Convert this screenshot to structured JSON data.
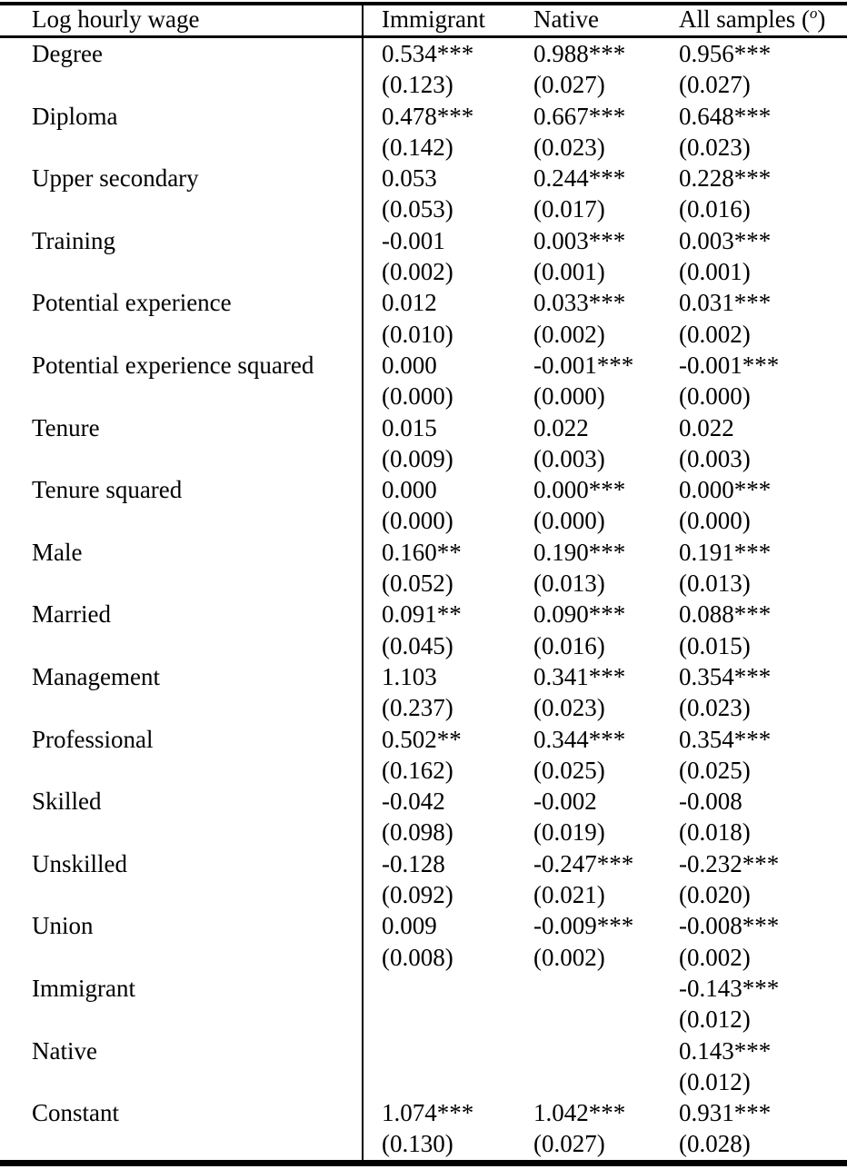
{
  "page": {
    "background_color": "#ffffff",
    "text_color": "#000000",
    "rule_color": "#000000"
  },
  "table": {
    "header": {
      "row_label": "Log hourly wage",
      "col_immigrant": "Immigrant",
      "col_native": "Native",
      "col_all_samples": {
        "base": "All samples ",
        "open_paren": "(",
        "sup": "o",
        "close_paren": ")"
      }
    },
    "rows": [
      {
        "label": "Degree",
        "coef": [
          "0.534***",
          "0.988***",
          "0.956***"
        ],
        "se": [
          "(0.123)",
          "(0.027)",
          "(0.027)"
        ]
      },
      {
        "label": "Diploma",
        "coef": [
          "0.478***",
          "0.667***",
          "0.648***"
        ],
        "se": [
          "(0.142)",
          "(0.023)",
          "(0.023)"
        ]
      },
      {
        "label": "Upper secondary",
        "coef": [
          "0.053",
          "0.244***",
          "0.228***"
        ],
        "se": [
          "(0.053)",
          "(0.017)",
          "(0.016)"
        ]
      },
      {
        "label": "Training",
        "coef": [
          "-0.001",
          "0.003***",
          "0.003***"
        ],
        "se": [
          "(0.002)",
          "(0.001)",
          "(0.001)"
        ]
      },
      {
        "label": "Potential experience",
        "coef": [
          "0.012",
          "0.033***",
          "0.031***"
        ],
        "se": [
          "(0.010)",
          "(0.002)",
          "(0.002)"
        ]
      },
      {
        "label": "Potential experience squared",
        "coef": [
          "0.000",
          "-0.001***",
          "-0.001***"
        ],
        "se": [
          "(0.000)",
          "(0.000)",
          "(0.000)"
        ]
      },
      {
        "label": "Tenure",
        "coef": [
          "0.015",
          "0.022",
          "0.022"
        ],
        "se": [
          "(0.009)",
          "(0.003)",
          "(0.003)"
        ]
      },
      {
        "label": "Tenure squared",
        "coef": [
          "0.000",
          "0.000***",
          "0.000***"
        ],
        "se": [
          "(0.000)",
          "(0.000)",
          "(0.000)"
        ]
      },
      {
        "label": "Male",
        "coef": [
          "0.160**",
          "0.190***",
          "0.191***"
        ],
        "se": [
          "(0.052)",
          "(0.013)",
          "(0.013)"
        ]
      },
      {
        "label": "Married",
        "coef": [
          "0.091**",
          "0.090***",
          "0.088***"
        ],
        "se": [
          "(0.045)",
          "(0.016)",
          "(0.015)"
        ]
      },
      {
        "label": "Management",
        "coef": [
          "1.103",
          "0.341***",
          "0.354***"
        ],
        "se": [
          "(0.237)",
          "(0.023)",
          "(0.023)"
        ]
      },
      {
        "label": "Professional",
        "coef": [
          "0.502**",
          "0.344***",
          "0.354***"
        ],
        "se": [
          "(0.162)",
          "(0.025)",
          "(0.025)"
        ]
      },
      {
        "label": "Skilled",
        "coef": [
          "-0.042",
          "-0.002",
          "-0.008"
        ],
        "se": [
          "(0.098)",
          "(0.019)",
          "(0.018)"
        ]
      },
      {
        "label": "Unskilled",
        "coef": [
          "-0.128",
          "-0.247***",
          "-0.232***"
        ],
        "se": [
          "(0.092)",
          "(0.021)",
          "(0.020)"
        ]
      },
      {
        "label": "Union",
        "coef": [
          "0.009",
          "-0.009***",
          "-0.008***"
        ],
        "se": [
          "(0.008)",
          "(0.002)",
          "(0.002)"
        ]
      },
      {
        "label": "Immigrant",
        "coef": [
          "",
          "",
          "-0.143***"
        ],
        "se": [
          "",
          "",
          "(0.012)"
        ]
      },
      {
        "label": "Native",
        "coef": [
          "",
          "",
          "0.143***"
        ],
        "se": [
          "",
          "",
          "(0.012)"
        ]
      },
      {
        "label": "Constant",
        "coef": [
          "1.074***",
          "1.042***",
          "0.931***"
        ],
        "se": [
          "(0.130)",
          "(0.027)",
          "(0.028)"
        ]
      }
    ]
  }
}
